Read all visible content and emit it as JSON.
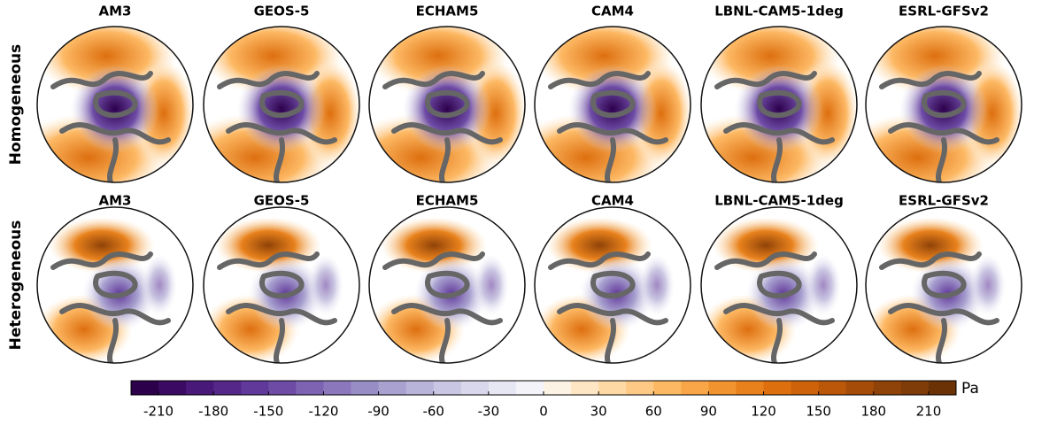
{
  "rows": [
    {
      "label": "Homogeneous",
      "panels": [
        "AM3",
        "GEOS-5",
        "ECHAM5",
        "CAM4",
        "LBNL-CAM5-1deg",
        "ESRL-GFSv2"
      ]
    },
    {
      "label": "Heterogeneous",
      "panels": [
        "AM3",
        "GEOS-5",
        "ECHAM5",
        "CAM4",
        "LBNL-CAM5-1deg",
        "ESRL-GFSv2"
      ]
    }
  ],
  "colorbar": {
    "unit": "Pa",
    "lim": [
      -225,
      225
    ],
    "ticks": [
      -210,
      -180,
      -150,
      -120,
      -90,
      -60,
      -30,
      0,
      30,
      60,
      90,
      120,
      150,
      180,
      210
    ],
    "colors": [
      "#2d004b",
      "#3b0a62",
      "#491979",
      "#542788",
      "#61399a",
      "#6e4ca6",
      "#7d63b2",
      "#8b78bc",
      "#998dc6",
      "#a9a2d0",
      "#b8b4d9",
      "#c8c6e2",
      "#d8d7eb",
      "#e7e6f3",
      "#f4f3f9",
      "#fdf3e4",
      "#fee6c4",
      "#fed9a4",
      "#fdc984",
      "#fdb863",
      "#f8a647",
      "#f1932f",
      "#e8811c",
      "#dd6f0f",
      "#cd620b",
      "#ba5709",
      "#a54c08",
      "#904308",
      "#7f3b08",
      "#6b3206"
    ]
  }
}
